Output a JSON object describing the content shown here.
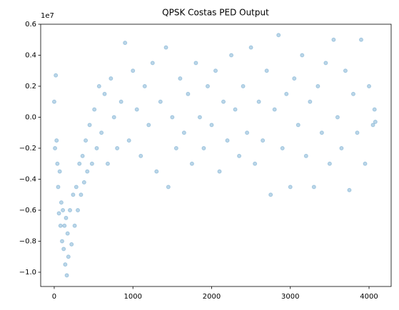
{
  "chart_data": {
    "type": "scatter",
    "title": "QPSK Costas PED Output",
    "y_offset_label": "1e7",
    "color": "#1f77b4",
    "alpha": 0.3,
    "xlim": [
      -172,
      4281
    ],
    "ylim": [
      -1.092,
      0.6
    ],
    "xticks": [
      0,
      1000,
      2000,
      3000,
      4000
    ],
    "yticks": [
      {
        "value": -1.0,
        "label": "−1.0"
      },
      {
        "value": -0.8,
        "label": "−0.8"
      },
      {
        "value": -0.6,
        "label": "−0.6"
      },
      {
        "value": -0.4,
        "label": "−0.4"
      },
      {
        "value": -0.2,
        "label": "−0.2"
      },
      {
        "value": 0,
        "label": "0.0"
      },
      0.2,
      0.4,
      0.6
    ],
    "x": [
      0,
      10,
      20,
      30,
      40,
      50,
      60,
      70,
      80,
      90,
      100,
      110,
      120,
      130,
      140,
      150,
      160,
      170,
      180,
      200,
      220,
      240,
      260,
      280,
      300,
      320,
      340,
      360,
      380,
      400,
      420,
      450,
      480,
      510,
      540,
      570,
      600,
      640,
      680,
      720,
      760,
      800,
      850,
      900,
      950,
      1000,
      1050,
      1100,
      1150,
      1200,
      1250,
      1300,
      1350,
      1420,
      1450,
      1500,
      1550,
      1600,
      1650,
      1700,
      1750,
      1800,
      1850,
      1900,
      1950,
      2000,
      2050,
      2100,
      2150,
      2200,
      2250,
      2300,
      2350,
      2400,
      2450,
      2500,
      2550,
      2600,
      2650,
      2700,
      2750,
      2800,
      2850,
      2900,
      2950,
      3000,
      3050,
      3100,
      3150,
      3200,
      3250,
      3300,
      3350,
      3400,
      3450,
      3500,
      3550,
      3600,
      3650,
      3700,
      3750,
      3800,
      3850,
      3900,
      3950,
      4000,
      4050,
      4070,
      4080
    ],
    "y": [
      0.1,
      -0.2,
      0.27,
      -0.15,
      -0.3,
      -0.45,
      -0.62,
      -0.35,
      -0.7,
      -0.55,
      -0.8,
      -0.6,
      -0.85,
      -0.7,
      -0.95,
      -0.65,
      -1.02,
      -0.75,
      -0.9,
      -0.6,
      -0.82,
      -0.5,
      -0.7,
      -0.45,
      -0.6,
      -0.3,
      -0.5,
      -0.25,
      -0.42,
      -0.15,
      -0.35,
      -0.05,
      -0.3,
      0.05,
      -0.2,
      0.2,
      -0.1,
      0.15,
      -0.3,
      0.25,
      0.0,
      -0.2,
      0.1,
      0.48,
      -0.15,
      0.3,
      0.05,
      -0.25,
      0.2,
      -0.05,
      0.35,
      -0.35,
      0.1,
      0.45,
      -0.45,
      0.0,
      -0.2,
      0.25,
      -0.1,
      0.15,
      -0.3,
      0.35,
      0.0,
      -0.2,
      0.2,
      -0.05,
      0.3,
      -0.35,
      0.1,
      -0.15,
      0.4,
      0.05,
      -0.25,
      0.2,
      -0.1,
      0.45,
      -0.3,
      0.1,
      -0.15,
      0.3,
      -0.5,
      0.05,
      0.53,
      -0.2,
      0.15,
      -0.45,
      0.25,
      -0.05,
      0.4,
      -0.25,
      0.1,
      -0.45,
      0.2,
      -0.1,
      0.35,
      -0.3,
      0.5,
      0.0,
      -0.2,
      0.3,
      -0.47,
      0.15,
      -0.1,
      0.5,
      -0.3,
      0.2,
      -0.05,
      0.05,
      -0.03
    ]
  }
}
